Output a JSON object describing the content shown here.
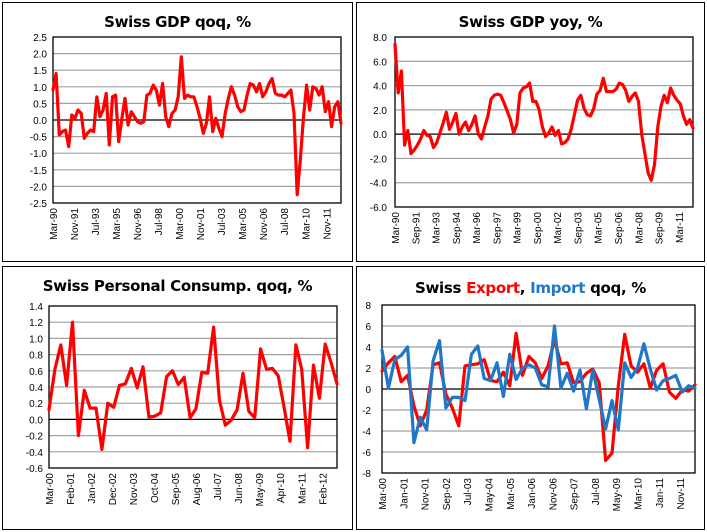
{
  "chart_data": [
    {
      "id": "gdp_qoq",
      "type": "line",
      "title": "Swiss GDP qoq, %",
      "xlabel": "",
      "ylabel": "",
      "ylim": [
        -2.5,
        2.5
      ],
      "yticks": [
        "2.5",
        "2.0",
        "1.5",
        "1.0",
        "0.5",
        "0.0",
        "-0.5",
        "-1.0",
        "-1.5",
        "-2.0",
        "-2.5"
      ],
      "ytick_values": [
        2.5,
        2.0,
        1.5,
        1.0,
        0.5,
        0.0,
        -0.5,
        -1.0,
        -1.5,
        -2.0,
        -2.5
      ],
      "xticks": [
        "Mar-90",
        "Nov-91",
        "Jul-93",
        "Mar-95",
        "Nov-96",
        "Jul-98",
        "Mar-00",
        "Nov-01",
        "Jul-03",
        "Mar-05",
        "Nov-06",
        "Jul-08",
        "Mar-10",
        "Nov-11"
      ],
      "grid": true,
      "series": [
        {
          "name": "GDP qoq",
          "color": "#ff0000",
          "values": [
            0.9,
            1.4,
            -0.45,
            -0.35,
            -0.3,
            -0.8,
            0.15,
            0.05,
            0.3,
            0.2,
            -0.55,
            -0.4,
            -0.3,
            -0.35,
            0.7,
            0.1,
            0.3,
            0.8,
            -0.75,
            0.7,
            0.75,
            -0.65,
            0.05,
            0.65,
            -0.15,
            0.25,
            0.1,
            -0.05,
            -0.1,
            -0.05,
            0.75,
            0.8,
            1.05,
            0.9,
            0.45,
            1.1,
            0.1,
            -0.2,
            0.2,
            0.3,
            0.7,
            1.9,
            0.65,
            0.75,
            0.7,
            0.7,
            0.4,
            0.05,
            -0.4,
            -0.1,
            0.7,
            -0.35,
            0.05,
            -0.25,
            -0.5,
            0.2,
            0.65,
            1.0,
            0.75,
            0.4,
            0.25,
            0.3,
            0.75,
            1.1,
            1.05,
            0.85,
            1.1,
            0.7,
            0.85,
            1.1,
            1.25,
            0.8,
            0.75,
            0.75,
            0.7,
            0.8,
            0.9,
            0.2,
            -2.25,
            -1.2,
            0.05,
            1.05,
            0.3,
            1.0,
            0.95,
            0.75,
            1.0,
            0.25,
            0.55,
            -0.2,
            0.4,
            0.55,
            -0.1
          ]
        }
      ]
    },
    {
      "id": "gdp_yoy",
      "type": "line",
      "title": "Swiss GDP yoy, %",
      "xlabel": "",
      "ylabel": "",
      "ylim": [
        -6.0,
        8.0
      ],
      "yticks": [
        "8.0",
        "6.0",
        "4.0",
        "2.0",
        "0.0",
        "-2.0",
        "-4.0",
        "-6.0"
      ],
      "ytick_values": [
        8,
        6,
        4,
        2,
        0,
        -2,
        -4,
        -6
      ],
      "xticks": [
        "Mar-90",
        "Sep-91",
        "Mar-93",
        "Sep-94",
        "Mar-96",
        "Sep-97",
        "Mar-99",
        "Sep-00",
        "Mar-02",
        "Sep-03",
        "Mar-05",
        "Sep-06",
        "Mar-08",
        "Sep-09",
        "Mar-11"
      ],
      "grid": true,
      "series": [
        {
          "name": "GDP yoy",
          "color": "#ff0000",
          "values": [
            7.4,
            3.4,
            5.2,
            -0.9,
            0.3,
            -1.6,
            -1.3,
            -0.9,
            -0.4,
            0.3,
            -0.1,
            -0.2,
            -1.1,
            -0.7,
            0.1,
            0.9,
            1.8,
            0.4,
            1.0,
            1.7,
            0.0,
            0.6,
            1.0,
            0.3,
            0.8,
            1.5,
            0.0,
            -0.4,
            0.6,
            1.5,
            2.9,
            3.2,
            3.3,
            3.2,
            2.6,
            1.9,
            1.2,
            0.1,
            0.8,
            3.4,
            3.8,
            3.9,
            4.2,
            2.7,
            2.7,
            2.0,
            0.6,
            -0.2,
            0.1,
            0.6,
            -0.1,
            0.3,
            -0.8,
            -0.7,
            -0.4,
            0.4,
            1.6,
            2.8,
            3.2,
            2.1,
            1.6,
            1.5,
            2.1,
            3.3,
            3.6,
            4.6,
            3.5,
            3.5,
            3.5,
            3.7,
            4.2,
            4.1,
            3.6,
            2.7,
            3.1,
            3.4,
            2.7,
            0.0,
            -1.6,
            -3.2,
            -3.8,
            -2.5,
            0.6,
            2.3,
            3.2,
            2.6,
            3.8,
            3.2,
            2.8,
            2.5,
            1.5,
            0.8,
            1.2,
            0.5
          ]
        }
      ]
    },
    {
      "id": "consumption_qoq",
      "type": "line",
      "title": "Swiss Personal Consump. qoq, %",
      "xlabel": "",
      "ylabel": "",
      "ylim": [
        -0.6,
        1.4
      ],
      "yticks": [
        "1.4",
        "1.2",
        "1.0",
        "0.8",
        "0.6",
        "0.4",
        "0.2",
        "0.0",
        "-0.2",
        "-0.4",
        "-0.6"
      ],
      "ytick_values": [
        1.4,
        1.2,
        1.0,
        0.8,
        0.6,
        0.4,
        0.2,
        0.0,
        -0.2,
        -0.4,
        -0.6
      ],
      "xticks": [
        "Mar-00",
        "Feb-01",
        "Jan-02",
        "Dec-02",
        "Nov-03",
        "Oct-04",
        "Sep-05",
        "Aug-06",
        "Jul-07",
        "Jun-08",
        "May-09",
        "Apr-10",
        "Mar-11",
        "Feb-12"
      ],
      "grid": true,
      "series": [
        {
          "name": "Personal consumption qoq",
          "color": "#ff0000",
          "values": [
            0.12,
            0.62,
            0.92,
            0.42,
            1.2,
            -0.2,
            0.36,
            0.14,
            0.14,
            -0.37,
            0.2,
            0.15,
            0.42,
            0.44,
            0.63,
            0.39,
            0.65,
            0.03,
            0.04,
            0.08,
            0.53,
            0.6,
            0.43,
            0.52,
            0.02,
            0.13,
            0.58,
            0.57,
            1.14,
            0.24,
            -0.07,
            -0.01,
            0.12,
            0.57,
            0.1,
            0.02,
            0.87,
            0.62,
            0.63,
            0.54,
            0.15,
            -0.27,
            0.92,
            0.62,
            -0.35,
            0.67,
            0.26,
            0.93,
            0.7,
            0.44
          ]
        }
      ]
    },
    {
      "id": "trade_qoq",
      "type": "line",
      "title": "Swiss Export, Import qoq, %",
      "title_parts": [
        {
          "text": "Swiss ",
          "color": "#000000"
        },
        {
          "text": "Export",
          "color": "#ff0000"
        },
        {
          "text": ", ",
          "color": "#000000"
        },
        {
          "text": "Import",
          "color": "#1f77c8"
        },
        {
          "text": " qoq, %",
          "color": "#000000"
        }
      ],
      "xlabel": "",
      "ylabel": "",
      "ylim": [
        -8,
        8
      ],
      "yticks": [
        "8",
        "6",
        "4",
        "2",
        "0",
        "-2",
        "-4",
        "-6",
        "-8"
      ],
      "ytick_values": [
        8,
        6,
        4,
        2,
        0,
        -2,
        -4,
        -6,
        -8
      ],
      "xticks": [
        "Mar-00",
        "Jan-01",
        "Nov-01",
        "Sep-02",
        "Jul-03",
        "May-04",
        "Mar-05",
        "Jan-06",
        "Nov-06",
        "Sep-07",
        "Jul-08",
        "May-09",
        "Mar-10",
        "Jan-11",
        "Nov-11"
      ],
      "grid": true,
      "series": [
        {
          "name": "Export",
          "color": "#ff0000",
          "values": [
            1.7,
            2.5,
            3.1,
            0.7,
            1.3,
            -1.6,
            -3.5,
            -2.0,
            2.3,
            2.5,
            -0.5,
            -1.8,
            -3.5,
            2.2,
            2.3,
            2.4,
            2.8,
            0.8,
            0.7,
            1.6,
            0.3,
            5.3,
            1.3,
            3.1,
            2.5,
            1.0,
            2.2,
            4.7,
            2.4,
            2.5,
            0.6,
            0.7,
            1.5,
            1.9,
            0.6,
            -6.8,
            -6.1,
            0.3,
            5.2,
            2.2,
            1.6,
            2.4,
            0.1,
            1.8,
            2.4,
            -0.3,
            -0.9,
            -0.1,
            -0.2,
            0.4
          ]
        },
        {
          "name": "Import",
          "color": "#1f77c8",
          "values": [
            3.7,
            0.1,
            2.8,
            3.2,
            4.0,
            -5.1,
            -2.7,
            -3.9,
            2.7,
            4.6,
            -1.8,
            -0.8,
            -0.8,
            -1.1,
            3.3,
            4.1,
            1.0,
            0.8,
            2.5,
            -0.7,
            3.3,
            0.9,
            2.0,
            2.3,
            2.0,
            0.4,
            0.2,
            6.0,
            0.1,
            1.5,
            -0.2,
            1.8,
            -1.9,
            1.8,
            -1.0,
            -3.8,
            -1.1,
            -3.9,
            2.5,
            1.1,
            2.0,
            4.3,
            1.9,
            -0.1,
            0.8,
            1.0,
            1.3,
            -0.3,
            0.3,
            0.1
          ]
        }
      ]
    }
  ]
}
